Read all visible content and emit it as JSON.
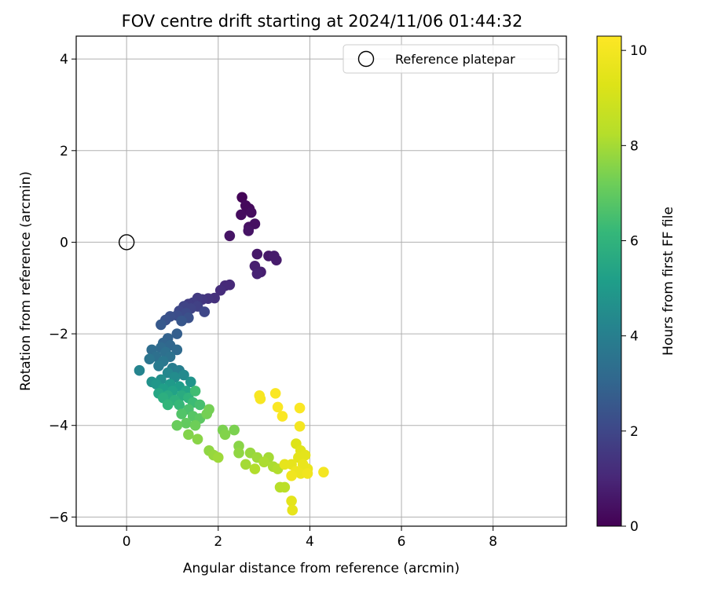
{
  "chart_data": {
    "type": "scatter",
    "title": "FOV centre drift starting at 2024/11/06 01:44:32",
    "xlabel": "Angular distance from reference (arcmin)",
    "ylabel": "Rotation from reference (arcmin)",
    "xlim": [
      -1.1,
      9.6
    ],
    "ylim": [
      -6.2,
      4.5
    ],
    "xticks": [
      0,
      2,
      4,
      6,
      8
    ],
    "yticks": [
      -6,
      -4,
      -2,
      0,
      2,
      4
    ],
    "grid": true,
    "legend": {
      "position": "top-right",
      "entries": [
        "Reference platepar"
      ]
    },
    "reference_point": {
      "x": 0,
      "y": 0
    },
    "colorbar": {
      "label": "Hours from first FF file",
      "min": 0,
      "max": 10.3,
      "ticks": [
        0,
        2,
        4,
        6,
        8,
        10
      ],
      "colormap": "viridis"
    },
    "points": [
      {
        "x": 2.52,
        "y": 0.98,
        "c": 0.1
      },
      {
        "x": 2.6,
        "y": 0.8,
        "c": 0.2
      },
      {
        "x": 2.68,
        "y": 0.73,
        "c": 0.2
      },
      {
        "x": 2.5,
        "y": 0.6,
        "c": 0.3
      },
      {
        "x": 2.72,
        "y": 0.65,
        "c": 0.3
      },
      {
        "x": 2.8,
        "y": 0.4,
        "c": 0.4
      },
      {
        "x": 2.67,
        "y": 0.33,
        "c": 0.4
      },
      {
        "x": 2.66,
        "y": 0.25,
        "c": 0.5
      },
      {
        "x": 2.25,
        "y": 0.14,
        "c": 0.5
      },
      {
        "x": 2.85,
        "y": -0.26,
        "c": 0.6
      },
      {
        "x": 3.1,
        "y": -0.3,
        "c": 0.6
      },
      {
        "x": 3.22,
        "y": -0.3,
        "c": 0.7
      },
      {
        "x": 3.27,
        "y": -0.39,
        "c": 0.7
      },
      {
        "x": 2.8,
        "y": -0.52,
        "c": 0.8
      },
      {
        "x": 2.93,
        "y": -0.65,
        "c": 0.8
      },
      {
        "x": 2.85,
        "y": -0.69,
        "c": 0.9
      },
      {
        "x": 2.15,
        "y": -0.95,
        "c": 1.1
      },
      {
        "x": 2.25,
        "y": -0.93,
        "c": 1.1
      },
      {
        "x": 2.05,
        "y": -1.05,
        "c": 1.2
      },
      {
        "x": 1.92,
        "y": -1.22,
        "c": 1.3
      },
      {
        "x": 1.78,
        "y": -1.23,
        "c": 1.4
      },
      {
        "x": 1.65,
        "y": -1.25,
        "c": 1.5
      },
      {
        "x": 1.55,
        "y": -1.22,
        "c": 1.6
      },
      {
        "x": 1.45,
        "y": -1.32,
        "c": 1.7
      },
      {
        "x": 1.35,
        "y": -1.35,
        "c": 1.7
      },
      {
        "x": 1.55,
        "y": -1.4,
        "c": 1.8
      },
      {
        "x": 1.25,
        "y": -1.4,
        "c": 1.9
      },
      {
        "x": 1.4,
        "y": -1.45,
        "c": 1.9
      },
      {
        "x": 1.15,
        "y": -1.5,
        "c": 2.0
      },
      {
        "x": 1.7,
        "y": -1.52,
        "c": 2.0
      },
      {
        "x": 1.3,
        "y": -1.55,
        "c": 2.1
      },
      {
        "x": 1.1,
        "y": -1.6,
        "c": 2.2
      },
      {
        "x": 0.95,
        "y": -1.62,
        "c": 2.3
      },
      {
        "x": 1.35,
        "y": -1.65,
        "c": 2.3
      },
      {
        "x": 0.85,
        "y": -1.7,
        "c": 2.4
      },
      {
        "x": 1.2,
        "y": -1.72,
        "c": 2.5
      },
      {
        "x": 0.75,
        "y": -1.8,
        "c": 2.6
      },
      {
        "x": 1.1,
        "y": -2.0,
        "c": 2.8
      },
      {
        "x": 0.9,
        "y": -2.1,
        "c": 2.9
      },
      {
        "x": 0.8,
        "y": -2.2,
        "c": 3.0
      },
      {
        "x": 0.95,
        "y": -2.25,
        "c": 3.1
      },
      {
        "x": 0.75,
        "y": -2.3,
        "c": 3.2
      },
      {
        "x": 1.1,
        "y": -2.35,
        "c": 3.2
      },
      {
        "x": 0.55,
        "y": -2.35,
        "c": 3.3
      },
      {
        "x": 0.85,
        "y": -2.4,
        "c": 3.4
      },
      {
        "x": 0.65,
        "y": -2.5,
        "c": 3.4
      },
      {
        "x": 0.95,
        "y": -2.5,
        "c": 3.5
      },
      {
        "x": 0.5,
        "y": -2.55,
        "c": 3.6
      },
      {
        "x": 0.8,
        "y": -2.6,
        "c": 3.7
      },
      {
        "x": 0.7,
        "y": -2.7,
        "c": 3.8
      },
      {
        "x": 1.0,
        "y": -2.75,
        "c": 3.9
      },
      {
        "x": 1.15,
        "y": -2.8,
        "c": 4.0
      },
      {
        "x": 0.28,
        "y": -2.8,
        "c": 4.2
      },
      {
        "x": 0.9,
        "y": -2.85,
        "c": 4.3
      },
      {
        "x": 1.25,
        "y": -2.9,
        "c": 4.4
      },
      {
        "x": 1.05,
        "y": -2.95,
        "c": 4.5
      },
      {
        "x": 0.75,
        "y": -3.0,
        "c": 4.6
      },
      {
        "x": 0.55,
        "y": -3.05,
        "c": 4.7
      },
      {
        "x": 1.4,
        "y": -3.05,
        "c": 4.8
      },
      {
        "x": 0.65,
        "y": -3.1,
        "c": 4.9
      },
      {
        "x": 0.95,
        "y": -3.1,
        "c": 5.0
      },
      {
        "x": 1.15,
        "y": -3.15,
        "c": 5.1
      },
      {
        "x": 0.8,
        "y": -3.2,
        "c": 5.2
      },
      {
        "x": 1.0,
        "y": -3.25,
        "c": 5.3
      },
      {
        "x": 1.3,
        "y": -3.25,
        "c": 5.4
      },
      {
        "x": 0.7,
        "y": -3.3,
        "c": 5.5
      },
      {
        "x": 0.9,
        "y": -3.35,
        "c": 5.6
      },
      {
        "x": 1.2,
        "y": -3.35,
        "c": 5.7
      },
      {
        "x": 0.8,
        "y": -3.4,
        "c": 5.8
      },
      {
        "x": 1.05,
        "y": -3.45,
        "c": 5.9
      },
      {
        "x": 1.35,
        "y": -3.4,
        "c": 6.0
      },
      {
        "x": 0.9,
        "y": -3.55,
        "c": 6.1
      },
      {
        "x": 1.15,
        "y": -3.55,
        "c": 6.2
      },
      {
        "x": 1.45,
        "y": -3.5,
        "c": 6.3
      },
      {
        "x": 1.5,
        "y": -3.25,
        "c": 6.4
      },
      {
        "x": 1.6,
        "y": -3.55,
        "c": 6.5
      },
      {
        "x": 1.35,
        "y": -3.65,
        "c": 6.6
      },
      {
        "x": 1.2,
        "y": -3.75,
        "c": 6.7
      },
      {
        "x": 1.45,
        "y": -3.8,
        "c": 6.8
      },
      {
        "x": 1.6,
        "y": -3.85,
        "c": 6.9
      },
      {
        "x": 1.3,
        "y": -3.95,
        "c": 7.0
      },
      {
        "x": 1.1,
        "y": -4.0,
        "c": 7.1
      },
      {
        "x": 1.5,
        "y": -4.0,
        "c": 7.2
      },
      {
        "x": 1.75,
        "y": -3.75,
        "c": 7.3
      },
      {
        "x": 1.8,
        "y": -3.65,
        "c": 7.3
      },
      {
        "x": 2.1,
        "y": -4.1,
        "c": 7.4
      },
      {
        "x": 2.35,
        "y": -4.1,
        "c": 7.4
      },
      {
        "x": 1.35,
        "y": -4.2,
        "c": 7.5
      },
      {
        "x": 2.15,
        "y": -4.2,
        "c": 7.5
      },
      {
        "x": 1.55,
        "y": -4.3,
        "c": 7.6
      },
      {
        "x": 2.45,
        "y": -4.45,
        "c": 7.6
      },
      {
        "x": 1.8,
        "y": -4.55,
        "c": 7.7
      },
      {
        "x": 2.45,
        "y": -4.6,
        "c": 7.7
      },
      {
        "x": 2.7,
        "y": -4.6,
        "c": 7.8
      },
      {
        "x": 1.9,
        "y": -4.65,
        "c": 7.8
      },
      {
        "x": 2.0,
        "y": -4.7,
        "c": 7.9
      },
      {
        "x": 2.85,
        "y": -4.7,
        "c": 7.9
      },
      {
        "x": 3.1,
        "y": -4.7,
        "c": 8.0
      },
      {
        "x": 2.6,
        "y": -4.85,
        "c": 8.0
      },
      {
        "x": 3.0,
        "y": -4.8,
        "c": 8.1
      },
      {
        "x": 3.2,
        "y": -4.9,
        "c": 8.1
      },
      {
        "x": 2.8,
        "y": -4.95,
        "c": 8.2
      },
      {
        "x": 3.3,
        "y": -4.95,
        "c": 8.2
      },
      {
        "x": 3.35,
        "y": -5.35,
        "c": 8.3
      },
      {
        "x": 3.45,
        "y": -5.35,
        "c": 8.4
      },
      {
        "x": 3.7,
        "y": -4.4,
        "c": 9.3
      },
      {
        "x": 3.8,
        "y": -4.55,
        "c": 9.4
      },
      {
        "x": 3.75,
        "y": -4.7,
        "c": 9.5
      },
      {
        "x": 3.9,
        "y": -4.65,
        "c": 9.5
      },
      {
        "x": 3.45,
        "y": -4.85,
        "c": 9.6
      },
      {
        "x": 3.6,
        "y": -4.85,
        "c": 9.6
      },
      {
        "x": 3.85,
        "y": -4.85,
        "c": 9.7
      },
      {
        "x": 3.95,
        "y": -4.95,
        "c": 9.7
      },
      {
        "x": 3.7,
        "y": -5.0,
        "c": 9.8
      },
      {
        "x": 3.8,
        "y": -5.05,
        "c": 9.8
      },
      {
        "x": 3.95,
        "y": -5.05,
        "c": 9.9
      },
      {
        "x": 3.6,
        "y": -5.1,
        "c": 9.9
      },
      {
        "x": 4.3,
        "y": -5.02,
        "c": 10.0
      },
      {
        "x": 3.6,
        "y": -5.65,
        "c": 9.5
      },
      {
        "x": 3.62,
        "y": -5.85,
        "c": 9.6
      },
      {
        "x": 2.9,
        "y": -3.35,
        "c": 10.1
      },
      {
        "x": 2.92,
        "y": -3.42,
        "c": 10.1
      },
      {
        "x": 3.25,
        "y": -3.3,
        "c": 10.2
      },
      {
        "x": 3.3,
        "y": -3.6,
        "c": 10.2
      },
      {
        "x": 3.4,
        "y": -3.8,
        "c": 10.2
      },
      {
        "x": 3.78,
        "y": -3.62,
        "c": 10.2
      },
      {
        "x": 3.78,
        "y": -4.02,
        "c": 10.0
      }
    ]
  }
}
